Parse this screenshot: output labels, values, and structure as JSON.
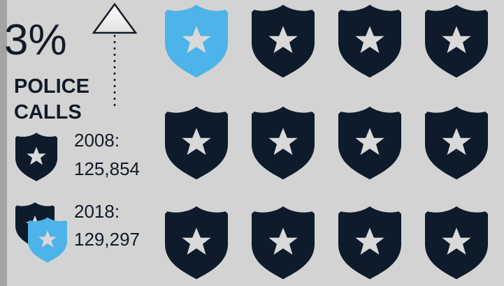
{
  "headline": {
    "percent": "3%",
    "label_line1": "POLICE",
    "label_line2": "CALLS"
  },
  "comparisons": [
    {
      "year": "2008:",
      "count": "125,854"
    },
    {
      "year": "2018:",
      "count": "129,297"
    }
  ]
}
